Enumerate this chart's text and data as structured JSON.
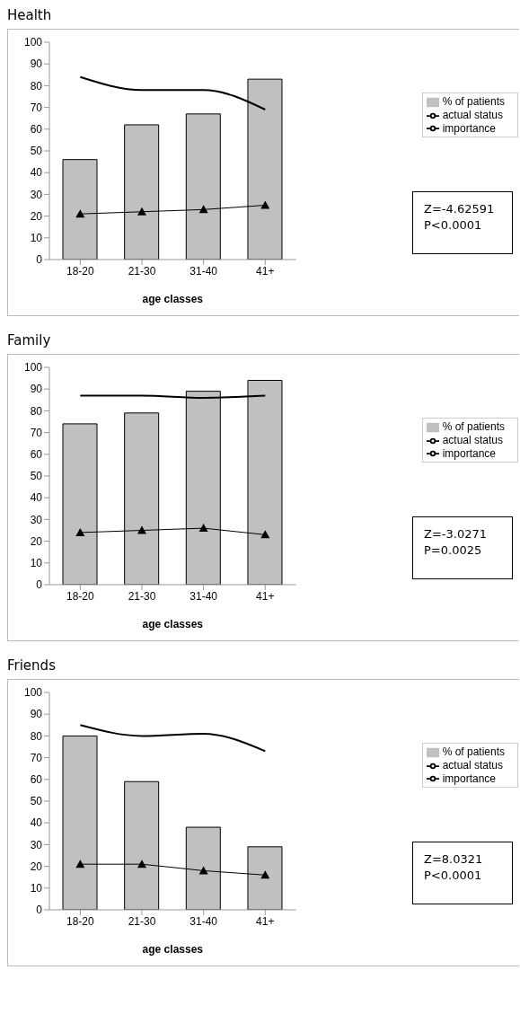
{
  "chart_data": [
    {
      "type": "bar",
      "title": "Health",
      "xlabel": "age classes",
      "categories": [
        "18-20",
        "21-30",
        "31-40",
        "41+"
      ],
      "ylim": [
        0,
        100
      ],
      "yticks": [
        0,
        10,
        20,
        30,
        40,
        50,
        60,
        70,
        80,
        90,
        100
      ],
      "grid": false,
      "legend": "right",
      "annotations": [
        "Z=-4.62591",
        "P<0.0001"
      ],
      "series": [
        {
          "name": "% of patients",
          "color": "#c0c0c0",
          "values": [
            46,
            62,
            67,
            83
          ]
        },
        {
          "name": "actual status",
          "type": "line",
          "color": "#000000",
          "marker": "none",
          "values": [
            84,
            78,
            78,
            69
          ]
        },
        {
          "name": "importance",
          "type": "line",
          "color": "#000000",
          "marker": "triangle",
          "values": [
            21,
            22,
            23,
            25
          ]
        }
      ]
    },
    {
      "type": "bar",
      "title": "Family",
      "xlabel": "age classes",
      "categories": [
        "18-20",
        "21-30",
        "31-40",
        "41+"
      ],
      "ylim": [
        0,
        100
      ],
      "yticks": [
        0,
        10,
        20,
        30,
        40,
        50,
        60,
        70,
        80,
        90,
        100
      ],
      "grid": false,
      "legend": "right",
      "annotations": [
        "Z=-3.0271",
        "P=0.0025"
      ],
      "series": [
        {
          "name": "% of patients",
          "color": "#c0c0c0",
          "values": [
            74,
            79,
            89,
            94
          ]
        },
        {
          "name": "actual status",
          "type": "line",
          "color": "#000000",
          "marker": "none",
          "values": [
            87,
            87,
            86,
            87
          ]
        },
        {
          "name": "importance",
          "type": "line",
          "color": "#000000",
          "marker": "triangle",
          "values": [
            24,
            25,
            26,
            23
          ]
        }
      ]
    },
    {
      "type": "bar",
      "title": "Friends",
      "xlabel": "age classes",
      "categories": [
        "18-20",
        "21-30",
        "31-40",
        "41+"
      ],
      "ylim": [
        0,
        100
      ],
      "yticks": [
        0,
        10,
        20,
        30,
        40,
        50,
        60,
        70,
        80,
        90,
        100
      ],
      "grid": false,
      "legend": "right",
      "annotations": [
        "Z=8.0321",
        "P<0.0001"
      ],
      "series": [
        {
          "name": "% of patients",
          "color": "#c0c0c0",
          "values": [
            80,
            59,
            38,
            29
          ]
        },
        {
          "name": "actual status",
          "type": "line",
          "color": "#000000",
          "marker": "none",
          "values": [
            85,
            80,
            81,
            73
          ]
        },
        {
          "name": "importance",
          "type": "line",
          "color": "#000000",
          "marker": "triangle",
          "values": [
            21,
            21,
            18,
            16
          ]
        }
      ]
    }
  ]
}
